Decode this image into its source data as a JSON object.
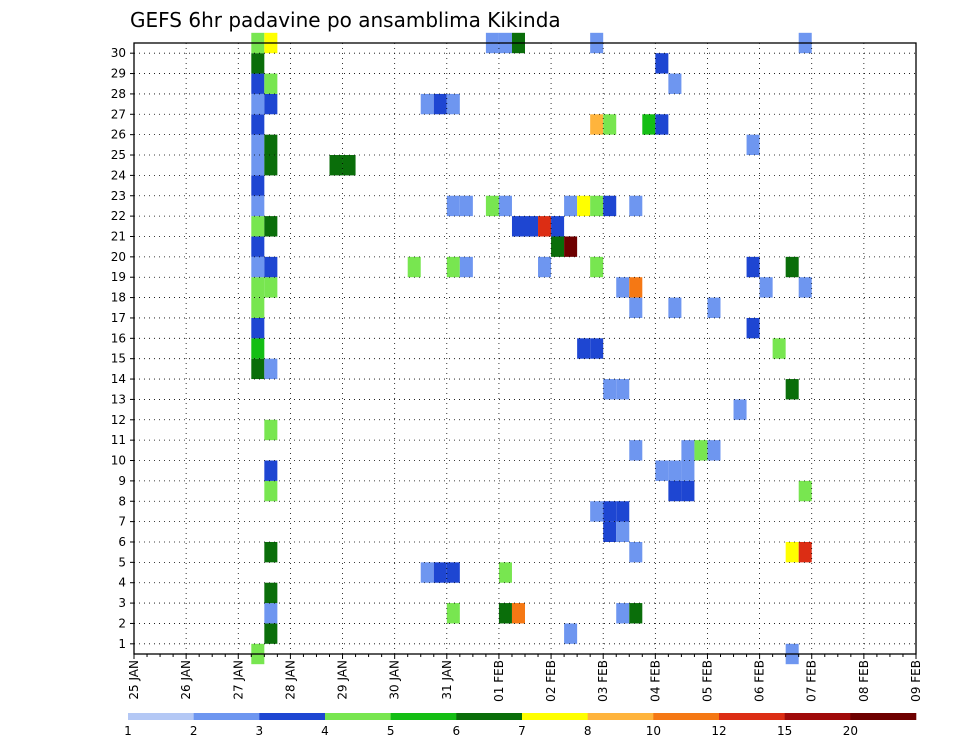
{
  "chart_data": {
    "type": "heatmap",
    "title": "GEFS 6hr padavine po ansamblima Kikinda",
    "xlabel": "",
    "ylabel": "",
    "x_axis": {
      "type": "time",
      "start": "2025-01-25T00",
      "end": "2025-02-09T00",
      "step_hours": 6,
      "tick_labels": [
        "25 JAN",
        "26 JAN",
        "27 JAN",
        "28 JAN",
        "29 JAN",
        "30 JAN",
        "31 JAN",
        "01 FEB",
        "02 FEB",
        "03 FEB",
        "04 FEB",
        "05 FEB",
        "06 FEB",
        "07 FEB",
        "08 FEB",
        "09 FEB"
      ]
    },
    "y_axis": {
      "label": "",
      "range": [
        0,
        30
      ],
      "tick_labels": [
        "1",
        "2",
        "3",
        "4",
        "5",
        "6",
        "7",
        "8",
        "9",
        "10",
        "11",
        "12",
        "13",
        "14",
        "15",
        "16",
        "17",
        "18",
        "19",
        "20",
        "21",
        "22",
        "23",
        "24",
        "25",
        "26",
        "27",
        "28",
        "29",
        "30"
      ]
    },
    "grid": true,
    "colorbar": {
      "position": "bottom",
      "levels": [
        1,
        2,
        3,
        4,
        5,
        6,
        7,
        8,
        10,
        12,
        15,
        20
      ],
      "colors": [
        "#b4c8f5",
        "#6e96f0",
        "#1e46d2",
        "#78e650",
        "#14be14",
        "#0a6e0a",
        "#ffff00",
        "#ffb43c",
        "#f57814",
        "#dc2d14",
        "#a00a0a",
        "#6e0000"
      ]
    },
    "cells": [
      [
        9,
        0,
        3
      ],
      [
        9,
        14,
        5
      ],
      [
        9,
        15,
        4
      ],
      [
        9,
        16,
        2
      ],
      [
        9,
        17,
        3
      ],
      [
        9,
        18,
        3
      ],
      [
        9,
        19,
        1
      ],
      [
        9,
        20,
        2
      ],
      [
        9,
        21,
        3
      ],
      [
        9,
        22,
        1
      ],
      [
        9,
        23,
        2
      ],
      [
        9,
        24,
        1
      ],
      [
        9,
        25,
        1
      ],
      [
        9,
        26,
        2
      ],
      [
        9,
        27,
        1
      ],
      [
        9,
        28,
        2
      ],
      [
        9,
        29,
        5
      ],
      [
        9,
        30,
        3
      ],
      [
        10,
        1,
        5
      ],
      [
        10,
        2,
        1
      ],
      [
        10,
        3,
        5
      ],
      [
        10,
        5,
        5
      ],
      [
        10,
        8,
        3
      ],
      [
        10,
        9,
        2
      ],
      [
        10,
        11,
        3
      ],
      [
        10,
        14,
        1
      ],
      [
        10,
        18,
        3
      ],
      [
        10,
        19,
        2
      ],
      [
        10,
        21,
        5
      ],
      [
        10,
        24,
        5
      ],
      [
        10,
        25,
        5
      ],
      [
        10,
        27,
        2
      ],
      [
        10,
        28,
        3
      ],
      [
        10,
        30,
        6
      ],
      [
        15,
        24,
        5
      ],
      [
        16,
        24,
        5
      ],
      [
        21,
        19,
        3
      ],
      [
        22,
        4,
        1
      ],
      [
        22,
        27,
        1
      ],
      [
        23,
        4,
        2
      ],
      [
        23,
        27,
        2
      ],
      [
        24,
        2,
        3
      ],
      [
        24,
        4,
        2
      ],
      [
        24,
        19,
        3
      ],
      [
        24,
        22,
        1
      ],
      [
        24,
        27,
        1
      ],
      [
        25,
        19,
        1
      ],
      [
        25,
        22,
        1
      ],
      [
        27,
        22,
        3
      ],
      [
        28,
        22,
        1
      ],
      [
        27,
        30,
        1
      ],
      [
        28,
        30,
        1
      ],
      [
        28,
        4,
        3
      ],
      [
        28,
        2,
        5
      ],
      [
        29,
        2,
        8
      ],
      [
        29,
        21,
        2
      ],
      [
        30,
        21,
        2
      ],
      [
        29,
        30,
        5
      ],
      [
        31,
        19,
        1
      ],
      [
        31,
        21,
        9
      ],
      [
        32,
        20,
        5
      ],
      [
        32,
        21,
        2
      ],
      [
        33,
        20,
        11
      ],
      [
        33,
        1,
        1
      ],
      [
        33,
        22,
        1
      ],
      [
        34,
        15,
        2
      ],
      [
        34,
        22,
        6
      ],
      [
        35,
        15,
        2
      ],
      [
        35,
        22,
        3
      ],
      [
        35,
        19,
        3
      ],
      [
        35,
        26,
        7
      ],
      [
        35,
        7,
        1
      ],
      [
        35,
        30,
        1
      ],
      [
        36,
        6,
        2
      ],
      [
        36,
        7,
        2
      ],
      [
        36,
        13,
        1
      ],
      [
        36,
        22,
        2
      ],
      [
        36,
        26,
        3
      ],
      [
        37,
        6,
        1
      ],
      [
        37,
        7,
        2
      ],
      [
        37,
        13,
        1
      ],
      [
        37,
        18,
        1
      ],
      [
        37,
        2,
        1
      ],
      [
        38,
        18,
        8
      ],
      [
        38,
        2,
        5
      ],
      [
        38,
        5,
        1
      ],
      [
        38,
        10,
        1
      ],
      [
        38,
        17,
        1
      ],
      [
        38,
        22,
        1
      ],
      [
        39,
        26,
        4
      ],
      [
        40,
        26,
        2
      ],
      [
        40,
        9,
        1
      ],
      [
        40,
        29,
        2
      ],
      [
        41,
        9,
        1
      ],
      [
        41,
        8,
        2
      ],
      [
        41,
        28,
        1
      ],
      [
        41,
        17,
        1
      ],
      [
        42,
        8,
        2
      ],
      [
        42,
        9,
        1
      ],
      [
        42,
        10,
        1
      ],
      [
        43,
        10,
        3
      ],
      [
        44,
        10,
        1
      ],
      [
        44,
        17,
        1
      ],
      [
        46,
        12,
        1
      ],
      [
        47,
        16,
        2
      ],
      [
        47,
        19,
        2
      ],
      [
        47,
        25,
        1
      ],
      [
        48,
        18,
        1
      ],
      [
        49,
        15,
        3
      ],
      [
        50,
        0,
        1
      ],
      [
        50,
        5,
        6
      ],
      [
        50,
        13,
        5
      ],
      [
        50,
        19,
        5
      ],
      [
        51,
        5,
        9
      ],
      [
        51,
        8,
        3
      ],
      [
        51,
        18,
        1
      ],
      [
        51,
        30,
        1
      ]
    ]
  }
}
